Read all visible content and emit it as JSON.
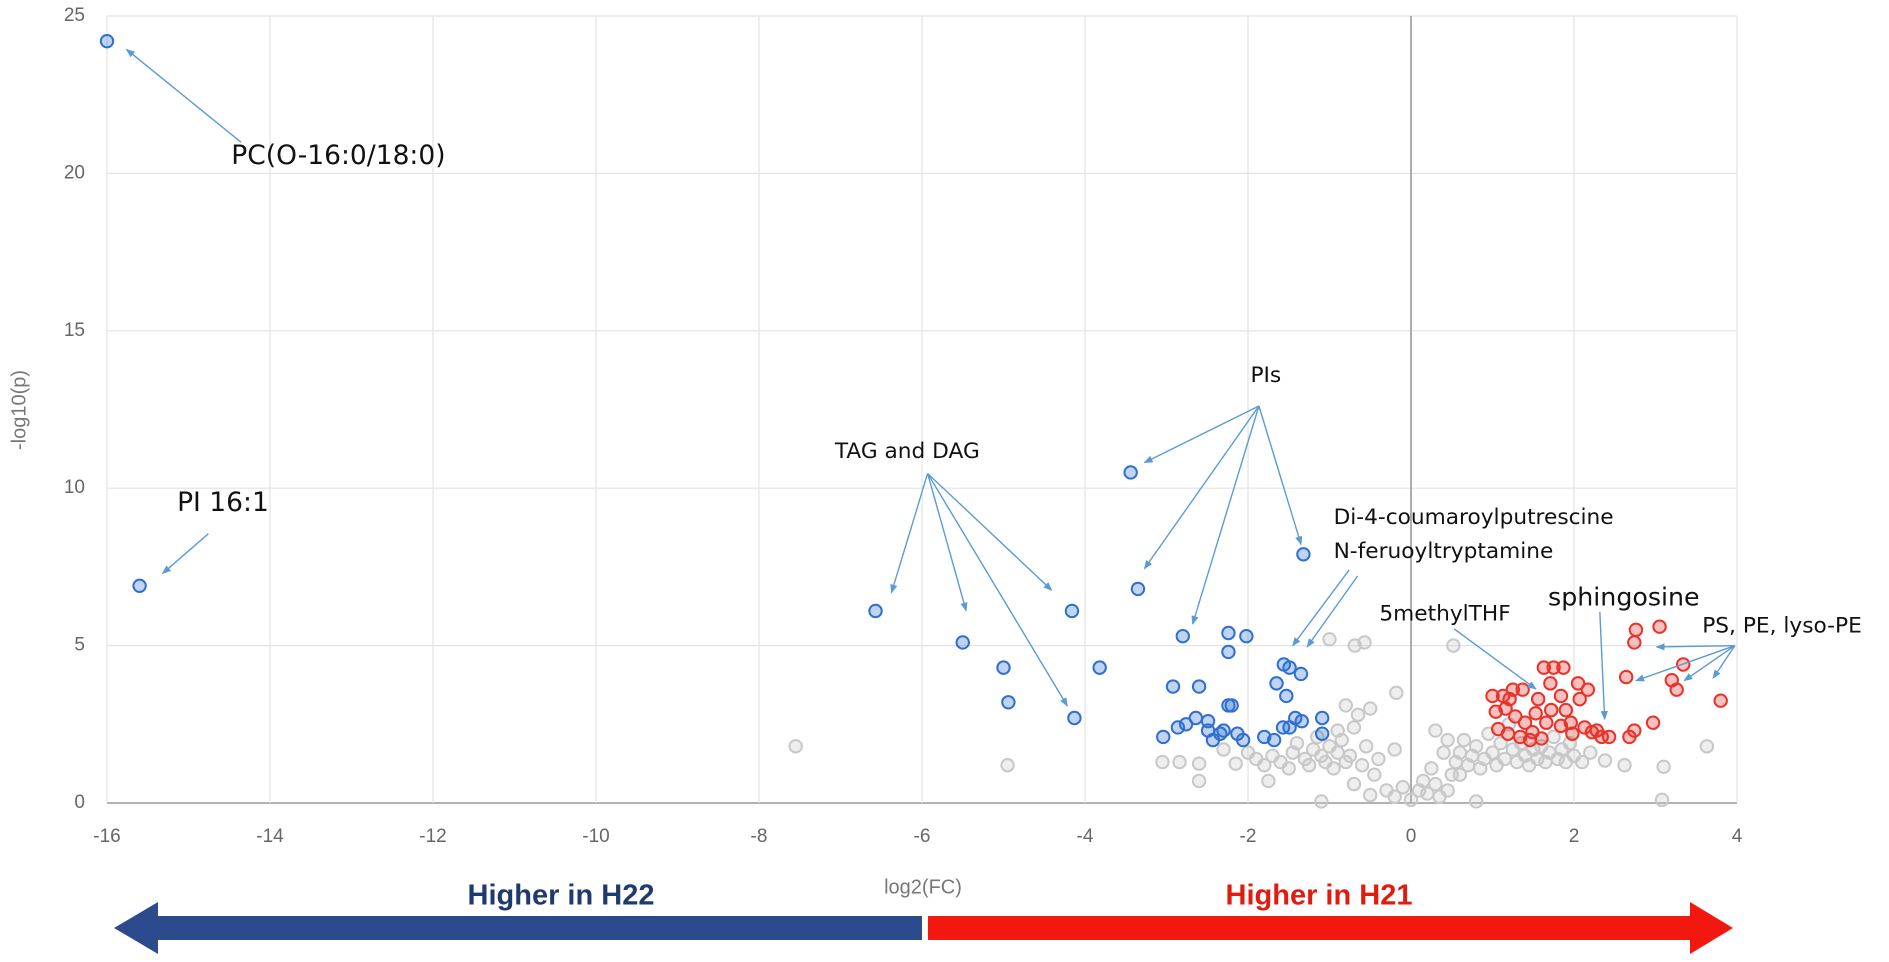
{
  "chart_data": {
    "type": "scatter",
    "x_label": "log2(FC)",
    "y_label": "-log10(p)",
    "xlim": [
      -16,
      4
    ],
    "xticks": [
      -16,
      -14,
      -12,
      -10,
      -8,
      -6,
      -4,
      -2,
      0,
      2,
      4
    ],
    "ylim": [
      0,
      25
    ],
    "yticks": [
      0,
      5,
      10,
      15,
      20,
      25
    ],
    "grid": true,
    "series": [
      {
        "color": "#c8c8c8",
        "x": [
          -7.55,
          -4.95,
          -3.05,
          -2.84,
          -2.6,
          -2.6,
          -2.3,
          -2.15,
          -2.0,
          -1.9,
          -1.8,
          -1.75,
          -1.7,
          -1.6,
          -1.5,
          -1.45,
          -1.4,
          -1.3,
          -1.25,
          -1.2,
          -1.15,
          -1.1,
          -1.05,
          -1.0,
          -0.95,
          -0.9,
          -0.85,
          -0.8,
          -0.75,
          -0.7,
          -0.65,
          -0.6,
          -0.55,
          -0.5,
          -0.45,
          -0.4,
          -0.7,
          -1.1,
          -0.5,
          -1.0,
          -0.69,
          -0.57,
          -0.18,
          -0.2,
          -0.3,
          -0.2,
          -0.1,
          0.0,
          0.1,
          0.15,
          0.2,
          0.3,
          0.35,
          0.45,
          0.5,
          0.55,
          0.6,
          0.65,
          0.7,
          0.75,
          0.8,
          0.85,
          0.9,
          0.95,
          1.0,
          1.05,
          1.1,
          1.15,
          1.2,
          1.25,
          1.3,
          1.35,
          1.4,
          1.45,
          1.5,
          1.55,
          1.6,
          1.65,
          1.7,
          1.75,
          1.8,
          1.85,
          1.9,
          1.95,
          2.0,
          2.1,
          2.2,
          0.52,
          0.3,
          0.45,
          0.6,
          0.8,
          0.25,
          2.38,
          2.62,
          3.1,
          3.08,
          3.63,
          -0.9,
          -0.8,
          0.4
        ],
        "values": [
          1.8,
          1.2,
          1.3,
          1.3,
          0.7,
          1.25,
          1.7,
          1.25,
          1.6,
          1.4,
          1.2,
          0.7,
          1.5,
          1.3,
          1.1,
          1.6,
          1.9,
          1.4,
          1.2,
          1.7,
          2.1,
          1.5,
          1.3,
          1.8,
          1.1,
          1.6,
          2.0,
          1.3,
          1.5,
          2.4,
          2.8,
          1.2,
          1.8,
          3.0,
          0.9,
          1.4,
          0.6,
          0.05,
          0.25,
          5.2,
          5.0,
          5.1,
          3.5,
          1.7,
          0.4,
          0.2,
          0.5,
          0.1,
          0.4,
          0.7,
          0.3,
          0.6,
          0.2,
          0.4,
          0.9,
          1.3,
          1.6,
          2.0,
          1.2,
          1.5,
          1.8,
          1.1,
          1.4,
          2.2,
          1.6,
          1.2,
          1.9,
          1.4,
          2.5,
          1.7,
          1.3,
          1.9,
          1.5,
          1.2,
          1.7,
          1.4,
          1.8,
          1.3,
          1.6,
          2.1,
          1.4,
          1.7,
          1.3,
          1.9,
          1.5,
          1.3,
          1.6,
          5.0,
          2.3,
          2.0,
          0.9,
          0.05,
          1.1,
          1.35,
          1.2,
          1.15,
          0.1,
          1.8,
          2.3,
          3.1,
          1.6
        ]
      },
      {
        "color": "#2f6fd0",
        "x": [
          -16.0,
          -15.6,
          -6.57,
          -5.5,
          -5.0,
          -4.94,
          -4.16,
          -4.13,
          -3.82,
          -3.44,
          -3.35,
          -2.92,
          -3.04,
          -2.8,
          -2.6,
          -2.86,
          -2.76,
          -2.64,
          -2.49,
          -2.49,
          -2.43,
          -2.34,
          -2.3,
          -2.24,
          -2.24,
          -2.24,
          -2.2,
          -2.13,
          -2.02,
          -2.06,
          -1.8,
          -1.68,
          -1.65,
          -1.56,
          -1.49,
          -1.53,
          -1.57,
          -1.42,
          -1.35,
          -1.34,
          -1.32,
          -1.09,
          -1.09,
          -1.49
        ],
        "values": [
          24.2,
          6.9,
          6.1,
          5.1,
          4.3,
          3.2,
          6.1,
          2.7,
          4.3,
          10.5,
          6.8,
          3.7,
          2.1,
          5.3,
          3.7,
          2.4,
          2.5,
          2.7,
          2.6,
          2.3,
          2.0,
          2.2,
          2.3,
          5.4,
          4.8,
          3.1,
          3.1,
          2.2,
          5.3,
          2.0,
          2.1,
          2.0,
          3.8,
          4.4,
          4.3,
          3.4,
          2.4,
          2.7,
          4.1,
          2.6,
          7.9,
          2.7,
          2.2,
          2.4
        ]
      },
      {
        "color": "#e8322a",
        "x": [
          2.76,
          2.74,
          3.05,
          2.64,
          3.2,
          3.34,
          3.26,
          3.8,
          2.97,
          2.74,
          2.68,
          1.0,
          1.13,
          1.25,
          1.37,
          1.04,
          1.16,
          1.28,
          1.4,
          1.49,
          1.6,
          1.07,
          1.19,
          1.34,
          1.46,
          1.21,
          1.63,
          1.75,
          1.87,
          1.71,
          1.84,
          1.9,
          1.96,
          2.05,
          2.17,
          2.07,
          1.98,
          2.13,
          2.28,
          2.34,
          2.43,
          1.56,
          1.53,
          1.72,
          1.84,
          1.66,
          2.22
        ],
        "values": [
          5.5,
          5.1,
          5.6,
          4.0,
          3.9,
          4.4,
          3.6,
          3.25,
          2.55,
          2.3,
          2.1,
          3.4,
          3.4,
          3.6,
          3.6,
          2.9,
          3.0,
          2.75,
          2.55,
          2.25,
          2.05,
          2.35,
          2.2,
          2.1,
          2.0,
          3.3,
          4.3,
          4.3,
          4.3,
          3.8,
          3.4,
          2.95,
          2.55,
          3.8,
          3.6,
          3.3,
          2.2,
          2.4,
          2.3,
          2.1,
          2.1,
          3.3,
          2.85,
          2.95,
          2.45,
          2.55,
          2.25
        ]
      }
    ],
    "annotations": [
      "PC(O-16:0/18:0)",
      "PI 16:1",
      "TAG and DAG",
      "PIs",
      "Di-4-coumaroylputrescine",
      "N-feruoyltryptamine",
      "5methylTHF",
      "sphingosine",
      "PS, PE, lyso-PE"
    ],
    "direction_labels": [
      "Higher in H22",
      "Higher in H21"
    ]
  }
}
